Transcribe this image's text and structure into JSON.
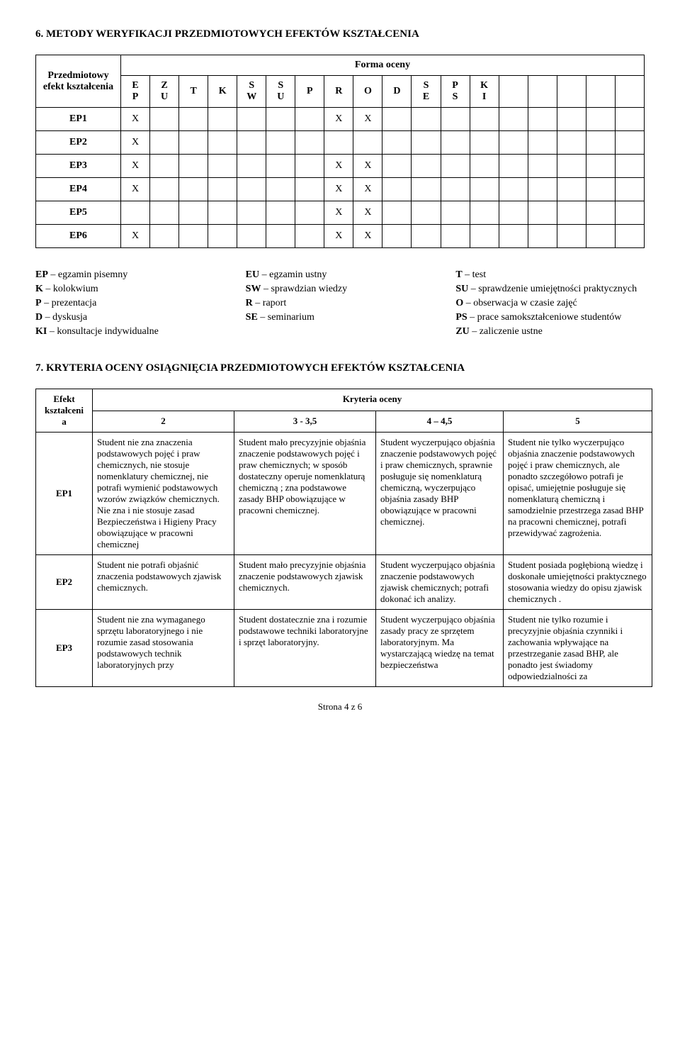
{
  "section6": {
    "title": "6. METODY WERYFIKACJI PRZEDMIOTOWYCH EFEKTÓW KSZTAŁCENIA",
    "rowhead_line1": "Przedmiotowy",
    "rowhead_line2": "efekt kształcenia",
    "form_label": "Forma oceny",
    "cols_line1": [
      "E",
      "Z",
      "T",
      "K",
      "S",
      "S",
      "P",
      "R",
      "O",
      "D",
      "S",
      "P",
      "K",
      "",
      "",
      "",
      "",
      ""
    ],
    "cols_line2": [
      "P",
      "U",
      "",
      "",
      "W",
      "U",
      "",
      "",
      "",
      "",
      "E",
      "S",
      "I",
      "",
      "",
      "",
      "",
      ""
    ],
    "rows": [
      {
        "label": "EP1",
        "marks": {
          "0": "X",
          "7": "X",
          "8": "X"
        }
      },
      {
        "label": "EP2",
        "marks": {
          "0": "X"
        }
      },
      {
        "label": "EP3",
        "marks": {
          "0": "X",
          "7": "X",
          "8": "X"
        }
      },
      {
        "label": "EP4",
        "marks": {
          "0": "X",
          "7": "X",
          "8": "X"
        }
      },
      {
        "label": "EP5",
        "marks": {
          "7": "X",
          "8": "X"
        }
      },
      {
        "label": "EP6",
        "marks": {
          "0": "X",
          "7": "X",
          "8": "X"
        }
      }
    ]
  },
  "legend": {
    "items": [
      [
        "EP",
        "egzamin pisemny",
        "EU",
        "egzamin ustny",
        "T",
        "test"
      ],
      [
        "K",
        "kolokwium",
        "SW",
        "sprawdzian wiedzy",
        "SU",
        "sprawdzenie umiejętności praktycznych"
      ],
      [
        "P",
        "prezentacja",
        "R",
        "raport",
        "O",
        "obserwacja w czasie zajęć"
      ],
      [
        "D",
        "dyskusja",
        "SE",
        "seminarium",
        "PS",
        "prace samokształceniowe studentów"
      ]
    ],
    "last_left_code": "KI",
    "last_left_text": "konsultacje indywidualne",
    "last_right_code": "ZU",
    "last_right_text": "zaliczenie ustne"
  },
  "section7": {
    "title": "7. KRYTERIA OCENY OSIĄGNIĘCIA PRZEDMIOTOWYCH EFEKTÓW KSZTAŁCENIA",
    "efekt_head_line1": "Efekt",
    "efekt_head_line2": "kształceni",
    "efekt_head_line3": "a",
    "criteria_head": "Kryteria oceny",
    "col_labels": [
      "2",
      "3 - 3,5",
      "4 – 4,5",
      "5"
    ],
    "col_widths": [
      "80px",
      "200px",
      "200px",
      "180px",
      "210px"
    ],
    "rows": [
      {
        "label": "EP1",
        "c2": "Student nie zna znaczenia podstawowych pojęć i praw chemicznych, nie stosuje nomenklatury chemicznej, nie potrafi wymienić podstawowych wzorów związków chemicznych. Nie zna i nie stosuje zasad Bezpieczeństwa i Higieny Pracy obowiązujące w pracowni chemicznej",
        "c3": "Student mało precyzyjnie objaśnia znaczenie podstawowych pojęć i praw chemicznych; w sposób dostateczny operuje nomenklaturą chemiczną ; zna podstawowe zasady BHP obowiązujące w pracowni chemicznej.",
        "c4": "Student wyczerpująco objaśnia znaczenie podstawowych pojęć i praw chemicznych, sprawnie posługuje się nomenklaturą chemiczną, wyczerpująco objaśnia zasady BHP obowiązujące w pracowni chemicznej.",
        "c5": "Student nie tylko wyczerpująco objaśnia znaczenie podstawowych pojęć i praw chemicznych, ale ponadto szczegółowo potrafi je opisać, umiejętnie posługuje się nomenklaturą chemiczną i samodzielnie przestrzega zasad BHP na pracowni chemicznej, potrafi przewidywać zagrożenia."
      },
      {
        "label": "EP2",
        "c2": "Student nie potrafi objaśnić znaczenia podstawowych zjawisk chemicznych.",
        "c3": "Student mało precyzyjnie objaśnia znaczenie podstawowych zjawisk chemicznych.",
        "c4": "Student wyczerpująco objaśnia znaczenie podstawowych zjawisk chemicznych; potrafi dokonać ich analizy.",
        "c5": "Student posiada pogłębioną wiedzę i doskonałe umiejętności praktycznego stosowania wiedzy do opisu zjawisk chemicznych ."
      },
      {
        "label": "EP3",
        "c2": "Student nie zna wymaganego sprzętu laboratoryjnego i nie rozumie zasad stosowania podstawowych technik laboratoryjnych przy",
        "c3": "Student dostatecznie zna i rozumie podstawowe techniki laboratoryjne i sprzęt laboratoryjny.",
        "c4": "Student wyczerpująco objaśnia zasady pracy ze sprzętem laboratoryjnym. Ma wystarczającą wiedzę na temat bezpieczeństwa",
        "c5": "Student nie tylko rozumie i precyzyjnie objaśnia czynniki i zachowania wpływające na przestrzeganie zasad BHP, ale ponadto jest świadomy odpowiedzialności za"
      }
    ]
  },
  "footer": "Strona 4 z 6"
}
